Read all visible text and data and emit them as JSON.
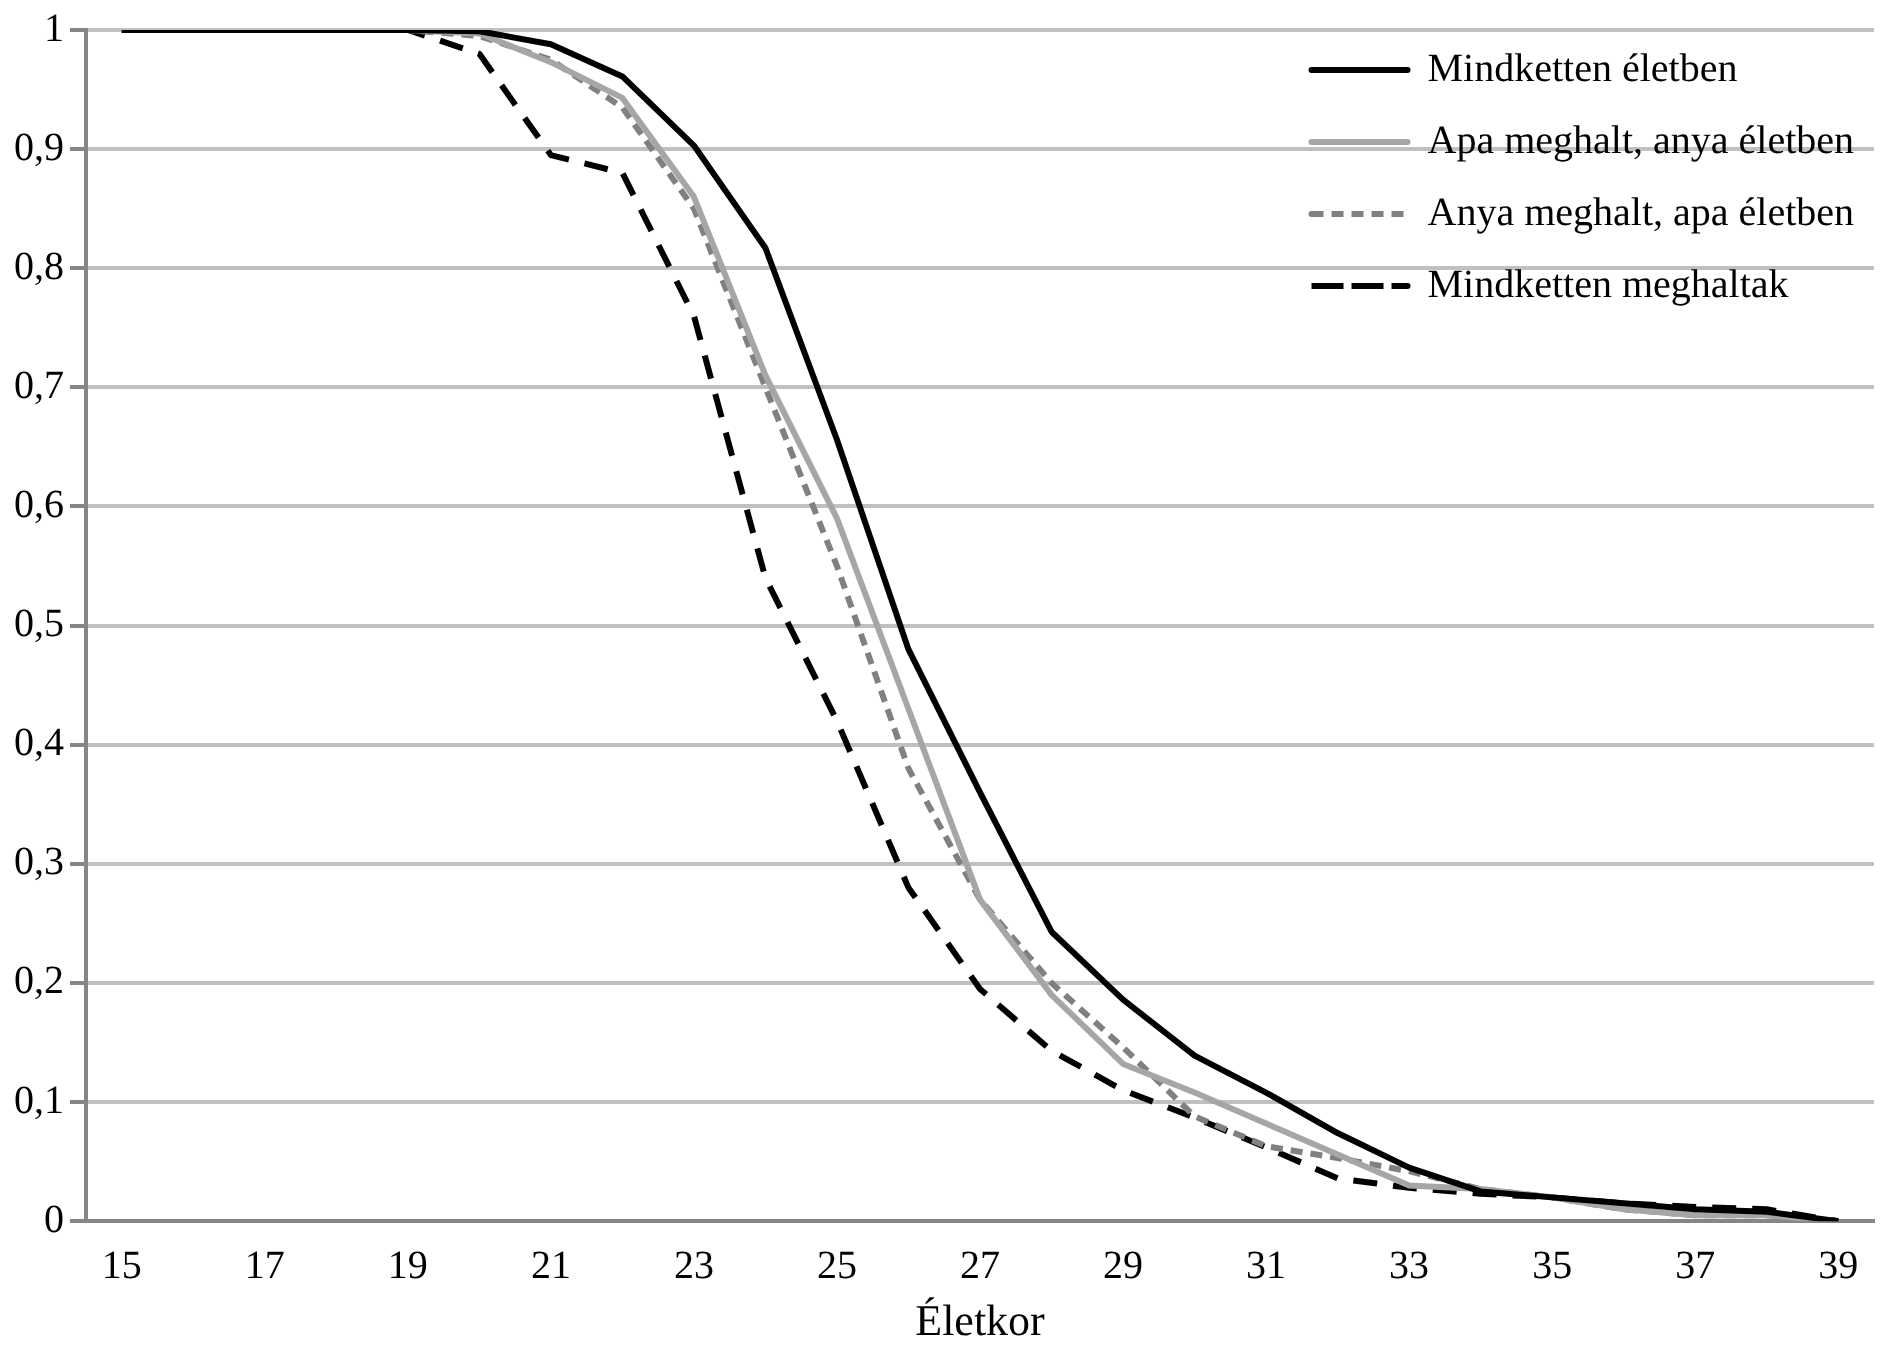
{
  "chart_data": {
    "type": "line",
    "xlabel": "Életkor",
    "categories": [
      "15",
      null,
      "17",
      null,
      "19",
      null,
      "21",
      null,
      "23",
      null,
      "25",
      null,
      "27",
      null,
      "29",
      null,
      "31",
      null,
      "33",
      null,
      "35",
      null,
      "37",
      null,
      "39"
    ],
    "series": [
      {
        "name": "Mindketten életben",
        "color": "#000000",
        "line_style": "solid",
        "values": [
          1,
          1,
          1,
          1,
          1,
          0.999,
          0.988,
          0.961,
          0.903,
          0.817,
          0.656,
          0.48,
          0.36,
          0.243,
          0.186,
          0.139,
          0.108,
          0.074,
          0.045,
          0.025,
          0.02,
          0.015,
          0.01,
          0.008,
          0
        ]
      },
      {
        "name": "Apa meghalt, anya életben",
        "color": "#a6a6a6",
        "line_style": "solid",
        "values": [
          1,
          1,
          1,
          1,
          1,
          0.997,
          0.973,
          0.943,
          0.86,
          0.71,
          0.59,
          0.43,
          0.27,
          0.19,
          0.132,
          0.108,
          0.082,
          0.056,
          0.03,
          0.027,
          0.02,
          0.01,
          0.005,
          0.005,
          0
        ]
      },
      {
        "name": "Anya meghalt, apa életben",
        "color": "#808080",
        "line_style": "dotted",
        "values": [
          1,
          1,
          1,
          1,
          1,
          0.995,
          0.975,
          0.935,
          0.85,
          0.7,
          0.55,
          0.38,
          0.27,
          0.2,
          0.146,
          0.088,
          0.063,
          0.053,
          0.042,
          0.027,
          0.02,
          0.01,
          0.005,
          0.005,
          0
        ]
      },
      {
        "name": "Mindketten meghaltak",
        "color": "#000000",
        "line_style": "dashed",
        "values": [
          1,
          1,
          1,
          1,
          1,
          0.98,
          0.895,
          0.88,
          0.76,
          0.54,
          0.42,
          0.28,
          0.195,
          0.143,
          0.11,
          0.087,
          0.062,
          0.036,
          0.028,
          0.023,
          0.02,
          0.015,
          0.012,
          0.01,
          0
        ]
      }
    ],
    "ylim": [
      0,
      1
    ],
    "yticks": [
      0,
      {
        "value": 0.1,
        "label": "0,1"
      },
      {
        "value": 0.2,
        "label": "0,2"
      },
      {
        "value": 0.3,
        "label": "0,3"
      },
      {
        "value": 0.4,
        "label": "0,4"
      },
      {
        "value": 0.5,
        "label": "0,5"
      },
      {
        "value": 0.6,
        "label": "0,6"
      },
      {
        "value": 0.7,
        "label": "0,7"
      },
      {
        "value": 0.8,
        "label": "0,8"
      },
      {
        "value": 0.9,
        "label": "0,9"
      },
      1
    ],
    "grid": "y",
    "legend": "top right",
    "marker": "none"
  }
}
